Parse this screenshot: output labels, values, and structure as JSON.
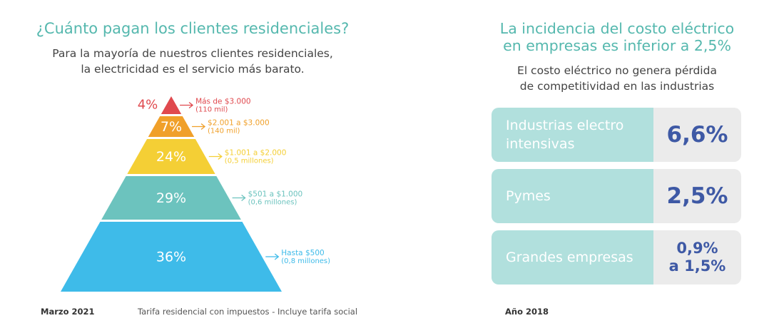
{
  "left": {
    "title": "¿Cuánto pagan los clientes residenciales?",
    "subtitle_line1": "Para la mayoría de nuestros clientes residenciales,",
    "subtitle_line2": "la electricidad es el servicio más barato."
  },
  "chart_data": {
    "type": "pyramid",
    "levels": [
      {
        "percent": "4%",
        "value": 4,
        "range": "Más de $3.000",
        "count": "(110 mil)",
        "color": "#e0494e"
      },
      {
        "percent": "7%",
        "value": 7,
        "range": "$2.001 a $3.000",
        "count": "(140 mil)",
        "color": "#f0a02a"
      },
      {
        "percent": "24%",
        "value": 24,
        "range": "$1.001 a $2.000",
        "count": "(0,5 millones)",
        "color": "#f4cf35"
      },
      {
        "percent": "29%",
        "value": 29,
        "range": "$501 a $1.000",
        "count": "(0,6 millones)",
        "color": "#6cc3be"
      },
      {
        "percent": "36%",
        "value": 36,
        "range": "Hasta $500",
        "count": "(0,8 millones)",
        "color": "#3ebbe9"
      }
    ]
  },
  "left_footer": {
    "date": "Marzo 2021",
    "note": "Tarifa residencial con impuestos - Incluye tarifa social"
  },
  "right": {
    "title_line1": "La incidencia del costo eléctrico",
    "title_line2": "en empresas es inferior a 2,5%",
    "subtitle_line1": "El costo eléctrico no genera pérdida",
    "subtitle_line2": "de competitividad en las industrias",
    "rows": [
      {
        "label_line1": "Industrias electro",
        "label_line2": "intensivas",
        "value_line1": "6,6%",
        "value_line2": ""
      },
      {
        "label_line1": "Pymes",
        "label_line2": "",
        "value_line1": "2,5%",
        "value_line2": ""
      },
      {
        "label_line1": "Grandes empresas",
        "label_line2": "",
        "value_line1": "0,9%",
        "value_line2": "a 1,5%"
      }
    ]
  },
  "right_footer": {
    "date": "Año 2018"
  }
}
